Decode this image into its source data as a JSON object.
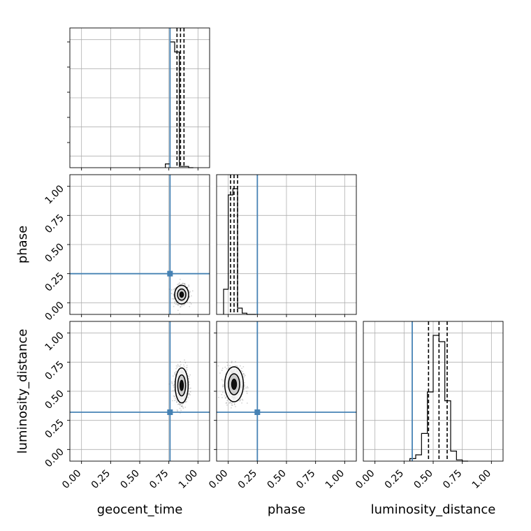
{
  "chart_data": {
    "type": "corner",
    "parameters": [
      "geocent_time",
      "phase",
      "luminosity_distance"
    ],
    "tick_labels": [
      "0.00",
      "0.25",
      "0.50",
      "0.75",
      "1.00"
    ],
    "axis_range": [
      -0.1,
      1.1
    ],
    "grid": true,
    "truth_color": "#4682b4",
    "truths": {
      "geocent_time": 0.76,
      "phase": 0.25,
      "luminosity_distance": 0.32
    },
    "histograms": [
      {
        "parameter": "geocent_time",
        "bin_edges": [
          0.72,
          0.76,
          0.8,
          0.84,
          0.88,
          0.92,
          0.96
        ],
        "counts": [
          0.03,
          1.0,
          0.92,
          0.01,
          0.01,
          0.0
        ],
        "quantiles": [
          0.82,
          0.85,
          0.88
        ]
      },
      {
        "parameter": "phase",
        "bin_edges": [
          -0.04,
          0.0,
          0.04,
          0.08,
          0.12,
          0.16,
          0.2,
          0.24
        ],
        "counts": [
          0.2,
          0.95,
          1.0,
          0.05,
          0.01,
          0.0,
          0.0
        ],
        "quantiles": [
          0.02,
          0.05,
          0.08
        ]
      },
      {
        "parameter": "luminosity_distance",
        "bin_edges": [
          0.3,
          0.35,
          0.4,
          0.45,
          0.5,
          0.55,
          0.6,
          0.65,
          0.7,
          0.75,
          0.8
        ],
        "counts": [
          0.02,
          0.05,
          0.22,
          0.55,
          1.0,
          0.95,
          0.48,
          0.08,
          0.01,
          0.0
        ],
        "quantiles": [
          0.46,
          0.55,
          0.62
        ]
      }
    ],
    "scatter_panels": [
      {
        "x": "geocent_time",
        "y": "phase",
        "center": [
          0.86,
          0.07
        ],
        "spread": [
          0.03,
          0.04
        ]
      },
      {
        "x": "geocent_time",
        "y": "luminosity_distance",
        "center": [
          0.86,
          0.55
        ],
        "spread": [
          0.028,
          0.075
        ]
      },
      {
        "x": "phase",
        "y": "luminosity_distance",
        "center": [
          0.05,
          0.56
        ],
        "spread": [
          0.04,
          0.075
        ]
      }
    ]
  }
}
